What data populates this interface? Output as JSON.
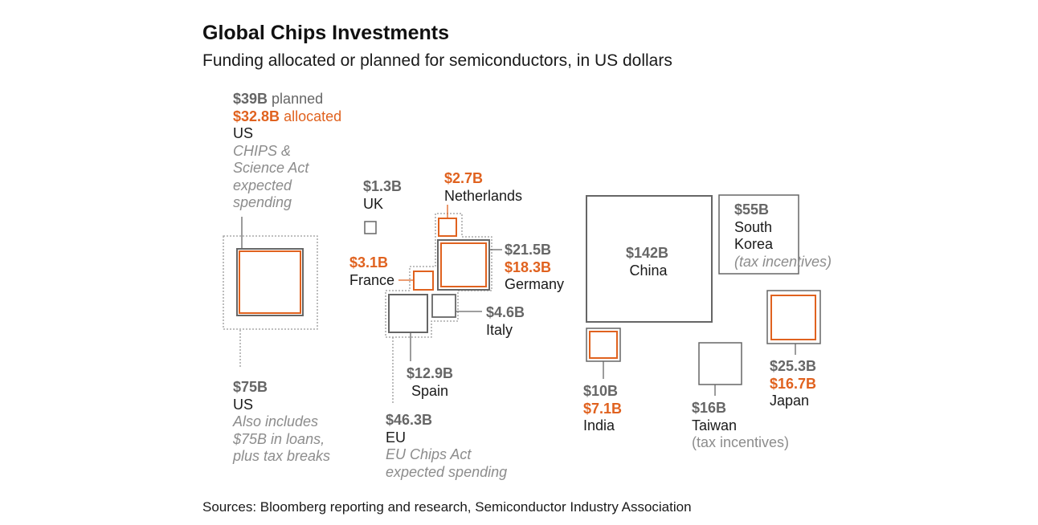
{
  "title": "Global Chips Investments",
  "subtitle": "Funding allocated or planned for semiconductors, in US dollars",
  "source": "Sources: Bloomberg reporting and research, Semiconductor Industry Association",
  "colors": {
    "planned": "#666666",
    "allocated": "#e0621f",
    "outer": "#999999"
  },
  "labels": {
    "us_top": {
      "planned": "$39B",
      "planned_word": "planned",
      "allocated": "$32.8B",
      "allocated_word": "allocated",
      "name": "US",
      "note1": "CHIPS &",
      "note2": "Science Act",
      "note3": "expected",
      "note4": "spending"
    },
    "us_bottom": {
      "value": "$75B",
      "name": "US",
      "note1": "Also includes",
      "note2": "$75B in loans,",
      "note3": "plus tax breaks"
    },
    "uk": {
      "value": "$1.3B",
      "name": "UK"
    },
    "netherlands": {
      "allocated": "$2.7B",
      "name": "Netherlands"
    },
    "germany": {
      "planned": "$21.5B",
      "allocated": "$18.3B",
      "name": "Germany"
    },
    "france": {
      "allocated": "$3.1B",
      "name": "France"
    },
    "italy": {
      "value": "$4.6B",
      "name": "Italy"
    },
    "spain": {
      "value": "$12.9B",
      "name": "Spain"
    },
    "eu": {
      "value": "$46.3B",
      "name": "EU",
      "note1": "EU Chips Act",
      "note2": "expected spending"
    },
    "china": {
      "value": "$142B",
      "name": "China"
    },
    "south_korea": {
      "value": "$55B",
      "name1": "South",
      "name2": "Korea",
      "note": "(tax incentives)"
    },
    "japan": {
      "planned": "$25.3B",
      "allocated": "$16.7B",
      "name": "Japan"
    },
    "india": {
      "planned": "$10B",
      "allocated": "$7.1B",
      "name": "India"
    },
    "taiwan": {
      "value": "$16B",
      "name": "Taiwan",
      "note": "(tax incentives)"
    }
  },
  "chart_data": {
    "type": "proportional-area squares",
    "series": [
      {
        "country": "US",
        "planned": 39,
        "allocated": 32.8,
        "total_incl_loans": 75
      },
      {
        "country": "UK",
        "planned": 1.3
      },
      {
        "country": "Netherlands",
        "allocated": 2.7
      },
      {
        "country": "Germany",
        "planned": 21.5,
        "allocated": 18.3
      },
      {
        "country": "France",
        "allocated": 3.1
      },
      {
        "country": "Italy",
        "planned": 4.6
      },
      {
        "country": "Spain",
        "planned": 12.9
      },
      {
        "country": "EU",
        "planned": 46.3
      },
      {
        "country": "China",
        "planned": 142
      },
      {
        "country": "South Korea",
        "planned": 55
      },
      {
        "country": "Japan",
        "planned": 25.3,
        "allocated": 16.7
      },
      {
        "country": "India",
        "planned": 10,
        "allocated": 7.1
      },
      {
        "country": "Taiwan",
        "planned": 16
      }
    ]
  }
}
